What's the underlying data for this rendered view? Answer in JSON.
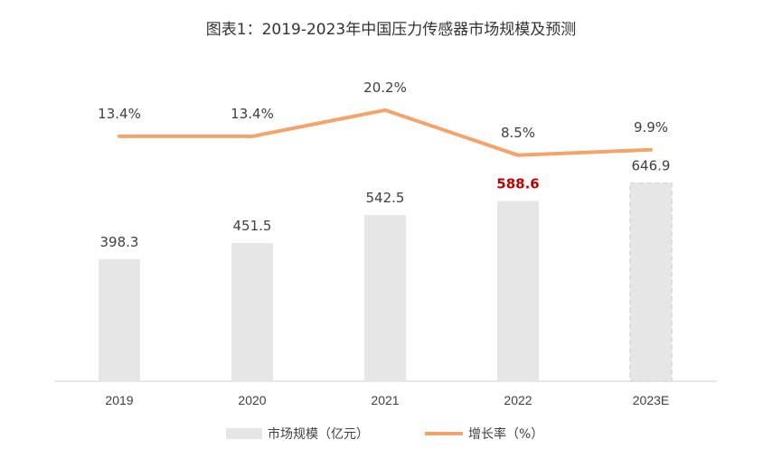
{
  "chart_data": {
    "type": "bar+line",
    "title": "图表1：2019-2023年中国压力传感器市场规模及预测",
    "categories": [
      "2019",
      "2020",
      "2021",
      "2022",
      "2023E"
    ],
    "series": [
      {
        "name": "市场规模（亿元）",
        "type": "bar",
        "values": [
          398.3,
          451.5,
          542.5,
          588.6,
          646.9
        ],
        "labels": [
          "398.3",
          "451.5",
          "542.5",
          "588.6",
          "646.9"
        ],
        "color": "#e6e6e6",
        "forecast_index": 4,
        "highlight_index": 3,
        "highlight_color": "#c00000"
      },
      {
        "name": "增长率（%）",
        "type": "line",
        "values": [
          13.4,
          13.4,
          20.2,
          8.5,
          9.9
        ],
        "labels": [
          "13.4%",
          "13.4%",
          "20.2%",
          "8.5%",
          "9.9%"
        ],
        "color": "#f4a46a"
      }
    ],
    "legend": "bottom",
    "grid": false
  }
}
